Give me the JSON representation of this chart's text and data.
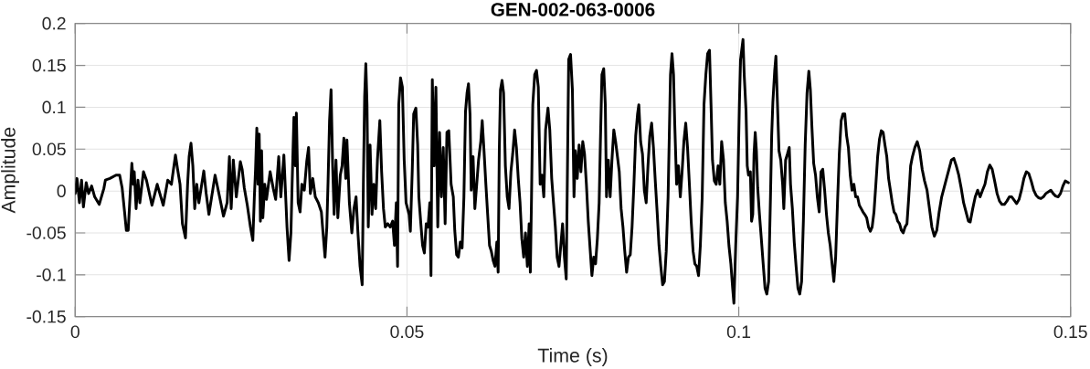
{
  "chart_data": {
    "type": "line",
    "title": "GEN-002-063-0006",
    "xlabel": "Time (s)",
    "ylabel": "Amplitude",
    "x": [
      0,
      0.00027,
      0.00064,
      0.00096,
      0.00124,
      0.00166,
      0.00202,
      0.00248,
      0.00294,
      0.00362,
      0.00432,
      0.00455,
      0.00523,
      0.00615,
      0.0067,
      0.00707,
      0.00744,
      0.00771,
      0.00799,
      0.00826,
      0.00854,
      0.00877,
      0.0089,
      0.00918,
      0.00946,
      0.00974,
      0.01029,
      0.01074,
      0.01157,
      0.01236,
      0.01327,
      0.01395,
      0.0145,
      0.01511,
      0.01543,
      0.0158,
      0.01616,
      0.01662,
      0.01694,
      0.01717,
      0.01745,
      0.01773,
      0.01801,
      0.01832,
      0.01864,
      0.01938,
      0.01974,
      0.02015,
      0.02108,
      0.02176,
      0.02235,
      0.0229,
      0.02324,
      0.02351,
      0.02383,
      0.02428,
      0.02489,
      0.02516,
      0.02548,
      0.02594,
      0.02641,
      0.02677,
      0.027,
      0.02718,
      0.02737,
      0.02755,
      0.02773,
      0.02791,
      0.02809,
      0.02828,
      0.02856,
      0.02883,
      0.02938,
      0.02985,
      0.03021,
      0.03067,
      0.03099,
      0.03145,
      0.03168,
      0.03192,
      0.03223,
      0.03251,
      0.03269,
      0.03296,
      0.03319,
      0.03333,
      0.0336,
      0.03389,
      0.03416,
      0.03453,
      0.03489,
      0.03517,
      0.03544,
      0.03581,
      0.03618,
      0.03664,
      0.0371,
      0.03742,
      0.03765,
      0.03792,
      0.03811,
      0.03833,
      0.03856,
      0.0388,
      0.03902,
      0.0393,
      0.03958,
      0.03995,
      0.04022,
      0.04049,
      0.04077,
      0.04095,
      0.04132,
      0.04169,
      0.04201,
      0.04233,
      0.04261,
      0.04293,
      0.04325,
      0.04343,
      0.04362,
      0.0438,
      0.04398,
      0.04417,
      0.04444,
      0.04473,
      0.045,
      0.04528,
      0.04555,
      0.04591,
      0.04618,
      0.04646,
      0.04673,
      0.0471,
      0.04748,
      0.04784,
      0.04811,
      0.04839,
      0.04858,
      0.04876,
      0.04903,
      0.04931,
      0.04958,
      0.04986,
      0.05032,
      0.05051,
      0.05079,
      0.05101,
      0.05134,
      0.05161,
      0.05179,
      0.05206,
      0.05235,
      0.05262,
      0.0529,
      0.05317,
      0.05344,
      0.05362,
      0.05382,
      0.05409,
      0.05436,
      0.05464,
      0.05491,
      0.05519,
      0.05547,
      0.05575,
      0.05602,
      0.0563,
      0.05665,
      0.05698,
      0.0572,
      0.05748,
      0.05775,
      0.05803,
      0.05831,
      0.05858,
      0.05882,
      0.05905,
      0.05927,
      0.0595,
      0.05968,
      0.05996,
      0.06023,
      0.06051,
      0.06079,
      0.06112,
      0.06134,
      0.06161,
      0.06189,
      0.06216,
      0.06244,
      0.06271,
      0.06299,
      0.06326,
      0.06354,
      0.06374,
      0.06391,
      0.06409,
      0.06433,
      0.06456,
      0.06483,
      0.06511,
      0.06538,
      0.06566,
      0.06593,
      0.06622,
      0.06649,
      0.06677,
      0.06704,
      0.06731,
      0.06759,
      0.06786,
      0.06814,
      0.06841,
      0.06859,
      0.06877,
      0.06896,
      0.06925,
      0.06952,
      0.06979,
      0.07007,
      0.07034,
      0.07062,
      0.07089,
      0.07125,
      0.07152,
      0.07181,
      0.07208,
      0.07236,
      0.07263,
      0.07291,
      0.07318,
      0.07345,
      0.07373,
      0.074,
      0.07419,
      0.07437,
      0.07465,
      0.07493,
      0.07517,
      0.07539,
      0.07566,
      0.07594,
      0.07621,
      0.07649,
      0.07676,
      0.07704,
      0.07732,
      0.07759,
      0.07787,
      0.07814,
      0.07842,
      0.07869,
      0.07896,
      0.07915,
      0.07938,
      0.07965,
      0.07989,
      0.08007,
      0.08035,
      0.08062,
      0.08089,
      0.08117,
      0.08144,
      0.08172,
      0.08199,
      0.08227,
      0.08255,
      0.08282,
      0.0831,
      0.08337,
      0.08365,
      0.08392,
      0.0842,
      0.08447,
      0.08475,
      0.08494,
      0.08521,
      0.08549,
      0.08577,
      0.08605,
      0.08632,
      0.08659,
      0.08687,
      0.08714,
      0.08742,
      0.0877,
      0.08798,
      0.08825,
      0.08853,
      0.0888,
      0.08907,
      0.08935,
      0.08953,
      0.08971,
      0.08994,
      0.09017,
      0.09035,
      0.09063,
      0.09091,
      0.09119,
      0.09146,
      0.09173,
      0.09201,
      0.09228,
      0.09256,
      0.09283,
      0.09312,
      0.09339,
      0.09367,
      0.09394,
      0.09421,
      0.09449,
      0.09476,
      0.09504,
      0.09531,
      0.09559,
      0.09582,
      0.09604,
      0.09632,
      0.0966,
      0.09688,
      0.09715,
      0.09742,
      0.0977,
      0.09797,
      0.09825,
      0.09852,
      0.09881,
      0.09908,
      0.09927,
      0.09954,
      0.09982,
      0.10009,
      0.10027,
      0.10064,
      0.10082,
      0.1011,
      0.10128,
      0.10147,
      0.10175,
      0.10193,
      0.10211,
      0.1023,
      0.10248,
      0.10266,
      0.10285,
      0.10312,
      0.1034,
      0.10368,
      0.10396,
      0.10423,
      0.1045,
      0.10478,
      0.10496,
      0.10514,
      0.10541,
      0.1056,
      0.10578,
      0.10606,
      0.10633,
      0.10661,
      0.10679,
      0.10706,
      0.10733,
      0.10761,
      0.1078,
      0.10808,
      0.10836,
      0.10864,
      0.10892,
      0.10919,
      0.10947,
      0.10974,
      0.11001,
      0.11029,
      0.11056,
      0.11079,
      0.11102,
      0.11129,
      0.11157,
      0.11184,
      0.11212,
      0.11239,
      0.11266,
      0.11294,
      0.11322,
      0.1135,
      0.11378,
      0.11406,
      0.11433,
      0.1146,
      0.11488,
      0.11515,
      0.11543,
      0.1157,
      0.11598,
      0.11625,
      0.11652,
      0.1168,
      0.11707,
      0.11735,
      0.11762,
      0.1179,
      0.11817,
      0.11845,
      0.11872,
      0.11899,
      0.11928,
      0.11955,
      0.11983,
      0.1201,
      0.12038,
      0.12066,
      0.12093,
      0.12121,
      0.12148,
      0.12176,
      0.12203,
      0.12231,
      0.12258,
      0.12285,
      0.12313,
      0.1234,
      0.12368,
      0.12395,
      0.12423,
      0.12451,
      0.12478,
      0.12506,
      0.12535,
      0.12562,
      0.1259,
      0.12617,
      0.12654,
      0.1269,
      0.12727,
      0.12764,
      0.128,
      0.12837,
      0.12874,
      0.1291,
      0.12947,
      0.12984,
      0.1302,
      0.13058,
      0.13095,
      0.13131,
      0.13168,
      0.13205,
      0.13241,
      0.13278,
      0.13315,
      0.13351,
      0.13388,
      0.13425,
      0.13461,
      0.13488,
      0.13526,
      0.13564,
      0.136,
      0.13637,
      0.13674,
      0.1371,
      0.13747,
      0.13783,
      0.13819,
      0.13856,
      0.13893,
      0.13929,
      0.13966,
      0.14003,
      0.14041,
      0.14078,
      0.14114,
      0.1415,
      0.14187,
      0.14224,
      0.1426,
      0.14297,
      0.14334,
      0.1437,
      0.14407,
      0.14444,
      0.1448,
      0.14517,
      0.14554,
      0.1459,
      0.14628,
      0.14665,
      0.14702,
      0.14738,
      0.14775,
      0.14812,
      0.14848,
      0.14885,
      0.14921,
      0.14967
    ],
    "series": [
      {
        "color": "#000000",
        "values": [
          -0.003,
          0.015,
          -0.014,
          0.013,
          -0.019,
          0.01,
          -0.003,
          0.006,
          -0.007,
          -0.016,
          0.003,
          0.013,
          0.015,
          0.019,
          0.019,
          0.004,
          -0.025,
          -0.047,
          -0.047,
          -0.007,
          0.033,
          0.008,
          0.023,
          -0.021,
          0.013,
          -0.014,
          0.023,
          0.013,
          -0.017,
          0.008,
          -0.017,
          0.013,
          0.008,
          0.043,
          0.026,
          0.008,
          -0.039,
          -0.056,
          0.008,
          0.041,
          0.057,
          0.03,
          -0.021,
          0.008,
          -0.014,
          0.024,
          -0.003,
          -0.028,
          0.019,
          -0.007,
          -0.03,
          -0.014,
          0.041,
          -0.021,
          0.037,
          -0.007,
          0.035,
          0.026,
          0.004,
          -0.017,
          -0.043,
          -0.059,
          -0.007,
          0.026,
          0.075,
          0.008,
          0.068,
          -0.036,
          0.048,
          -0.032,
          0.008,
          -0.01,
          0.023,
          0.003,
          -0.01,
          0.041,
          -0.007,
          0.043,
          0.001,
          -0.043,
          -0.083,
          -0.05,
          0.008,
          0.088,
          0.03,
          0.093,
          -0.014,
          -0.025,
          0.008,
          0.001,
          0.035,
          0.052,
          -0.003,
          0.015,
          -0.007,
          -0.014,
          -0.025,
          -0.057,
          -0.079,
          -0.043,
          0.012,
          0.084,
          0.121,
          0.03,
          -0.028,
          0.037,
          -0.032,
          0.019,
          0.03,
          0.063,
          0.015,
          0.061,
          -0.014,
          -0.05,
          -0.021,
          -0.007,
          -0.05,
          -0.09,
          -0.112,
          0.008,
          0.113,
          0.152,
          0.103,
          -0.043,
          0.055,
          -0.028,
          0.008,
          -0.021,
          0.037,
          0.084,
          0.023,
          -0.021,
          -0.043,
          -0.039,
          -0.043,
          -0.036,
          -0.065,
          -0.014,
          -0.09,
          0.103,
          0.135,
          0.124,
          0.037,
          -0.014,
          -0.028,
          -0.048,
          0.023,
          0.092,
          0.099,
          0.055,
          -0.007,
          -0.036,
          -0.065,
          -0.074,
          -0.039,
          -0.043,
          -0.014,
          -0.101,
          0.133,
          0.03,
          0.124,
          -0.043,
          0.07,
          -0.007,
          0.052,
          -0.039,
          0.07,
          0.072,
          0.008,
          -0.007,
          -0.047,
          -0.076,
          -0.079,
          -0.061,
          -0.068,
          -0.007,
          0.095,
          0.117,
          0.128,
          0.092,
          0.001,
          0.041,
          -0.021,
          0.008,
          0.037,
          0.059,
          0.084,
          0.048,
          0.008,
          -0.028,
          -0.065,
          -0.072,
          -0.083,
          -0.09,
          -0.061,
          -0.097,
          0.048,
          0.121,
          0.132,
          0.117,
          0.03,
          -0.007,
          -0.021,
          0.023,
          0.044,
          0.073,
          0.052,
          0.015,
          -0.014,
          -0.057,
          -0.079,
          -0.05,
          -0.09,
          -0.039,
          -0.097,
          -0.007,
          0.103,
          0.139,
          0.144,
          0.124,
          0.008,
          0.019,
          -0.007,
          0.073,
          0.099,
          0.073,
          0.015,
          -0.014,
          -0.043,
          -0.079,
          -0.09,
          -0.065,
          -0.039,
          -0.079,
          -0.105,
          0.03,
          0.157,
          0.163,
          0.121,
          -0.007,
          0.048,
          0.015,
          0.055,
          0.023,
          0.059,
          0.044,
          0.008,
          -0.036,
          -0.068,
          -0.101,
          -0.079,
          -0.087,
          -0.057,
          -0.014,
          0.059,
          0.139,
          0.146,
          0.103,
          -0.007,
          0.037,
          -0.007,
          0.037,
          0.073,
          0.059,
          0.041,
          0.023,
          -0.021,
          -0.043,
          -0.072,
          -0.097,
          -0.079,
          -0.076,
          -0.043,
          0.008,
          0.066,
          0.092,
          0.103,
          0.059,
          0.044,
          0.001,
          -0.014,
          0.03,
          0.066,
          0.081,
          0.052,
          0.012,
          -0.025,
          -0.065,
          -0.09,
          -0.112,
          -0.108,
          -0.072,
          -0.007,
          0.066,
          0.139,
          0.164,
          0.139,
          0.081,
          0.008,
          0.03,
          -0.007,
          0.023,
          0.059,
          0.081,
          0.052,
          0.008,
          -0.036,
          -0.072,
          -0.087,
          -0.09,
          -0.101,
          -0.065,
          -0.007,
          0.103,
          0.139,
          0.164,
          0.168,
          0.103,
          0.037,
          0.012,
          0.008,
          0.03,
          0.008,
          0.059,
          0.037,
          -0.014,
          -0.036,
          -0.065,
          -0.087,
          -0.116,
          -0.134,
          -0.065,
          -0.007,
          0.103,
          0.157,
          0.181,
          0.139,
          0.095,
          0.03,
          0.019,
          0.023,
          -0.036,
          -0.028,
          0.044,
          0.07,
          0.048,
          0.004,
          -0.028,
          -0.057,
          -0.087,
          -0.116,
          -0.123,
          -0.108,
          -0.007,
          0.066,
          0.106,
          0.143,
          0.161,
          0.117,
          0.048,
          0.037,
          0.008,
          -0.021,
          0.037,
          0.044,
          0.052,
          0.008,
          -0.021,
          -0.061,
          -0.09,
          -0.116,
          -0.123,
          -0.108,
          -0.036,
          0.055,
          0.117,
          0.143,
          0.121,
          0.077,
          0.033,
          0.019,
          -0.007,
          -0.025,
          0.023,
          0.026,
          0.001,
          -0.028,
          -0.05,
          -0.065,
          -0.087,
          -0.108,
          -0.079,
          -0.014,
          0.044,
          0.084,
          0.092,
          0.092,
          0.066,
          0.052,
          0.019,
          0.001,
          0.008,
          -0.007,
          -0.007,
          -0.017,
          -0.021,
          -0.025,
          -0.028,
          -0.032,
          -0.043,
          -0.048,
          -0.043,
          -0.025,
          0.008,
          0.041,
          0.062,
          0.072,
          0.07,
          0.055,
          0.041,
          0.015,
          0.001,
          -0.014,
          -0.025,
          -0.028,
          -0.036,
          -0.039,
          -0.047,
          -0.05,
          -0.043,
          -0.039,
          -0.007,
          0.03,
          0.041,
          0.052,
          0.059,
          0.048,
          0.026,
          0.012,
          0.001,
          -0.021,
          -0.043,
          -0.054,
          -0.047,
          -0.025,
          -0.007,
          0.004,
          0.015,
          0.026,
          0.037,
          0.039,
          0.03,
          0.019,
          0.004,
          -0.014,
          -0.025,
          -0.036,
          -0.037,
          -0.021,
          -0.007,
          0.001,
          -0.007,
          0.001,
          0.008,
          0.023,
          0.031,
          0.026,
          0.012,
          -0.003,
          -0.012,
          -0.016,
          -0.016,
          -0.012,
          -0.007,
          -0.007,
          -0.011,
          -0.015,
          -0.01,
          0.001,
          0.015,
          0.023,
          0.021,
          0.012,
          0.001,
          -0.005,
          -0.008,
          -0.009,
          -0.007,
          -0.003,
          -0.001,
          0.001,
          -0.003,
          -0.006,
          -0.007,
          -0.003,
          0.006,
          0.012,
          0.01
        ]
      }
    ],
    "xlim": [
      0,
      0.15
    ],
    "ylim": [
      -0.15,
      0.2
    ],
    "xticks": [
      0,
      0.05,
      0.1,
      0.15
    ],
    "yticks": [
      -0.15,
      -0.1,
      -0.05,
      0,
      0.05,
      0.1,
      0.15,
      0.2
    ],
    "grid": true,
    "marker": "none",
    "line_style": "solid"
  }
}
